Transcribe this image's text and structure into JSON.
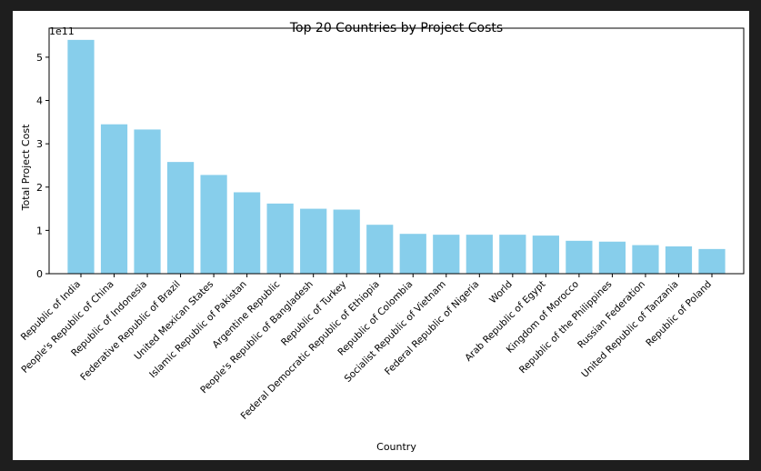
{
  "chart_data": {
    "type": "bar",
    "title": "Top 20 Countries by Project Costs",
    "xlabel": "Country",
    "ylabel": "Total Project Cost",
    "y_scale_label": "1e11",
    "ylim": [
      0,
      5.67
    ],
    "yticks": [
      0,
      1,
      2,
      3,
      4,
      5
    ],
    "bar_color": "#87ceeb",
    "grid": false,
    "categories": [
      "Republic of India",
      "People's Republic of China",
      "Republic of Indonesia",
      "Federative Republic of Brazil",
      "United Mexican States",
      "Islamic Republic of Pakistan",
      "Argentine Republic",
      "People's Republic of Bangladesh",
      "Republic of Turkey",
      "Federal Democratic Republic of Ethiopia",
      "Republic of Colombia",
      "Socialist Republic of Vietnam",
      "Federal Republic of Nigeria",
      "World",
      "Arab Republic of Egypt",
      "Kingdom of Morocco",
      "Republic of the Philippines",
      "Russian Federation",
      "United Republic of Tanzania",
      "Republic of Poland"
    ],
    "values": [
      5.4,
      3.45,
      3.33,
      2.58,
      2.28,
      1.88,
      1.62,
      1.5,
      1.48,
      1.13,
      0.92,
      0.9,
      0.9,
      0.9,
      0.88,
      0.76,
      0.74,
      0.66,
      0.63,
      0.57
    ]
  }
}
